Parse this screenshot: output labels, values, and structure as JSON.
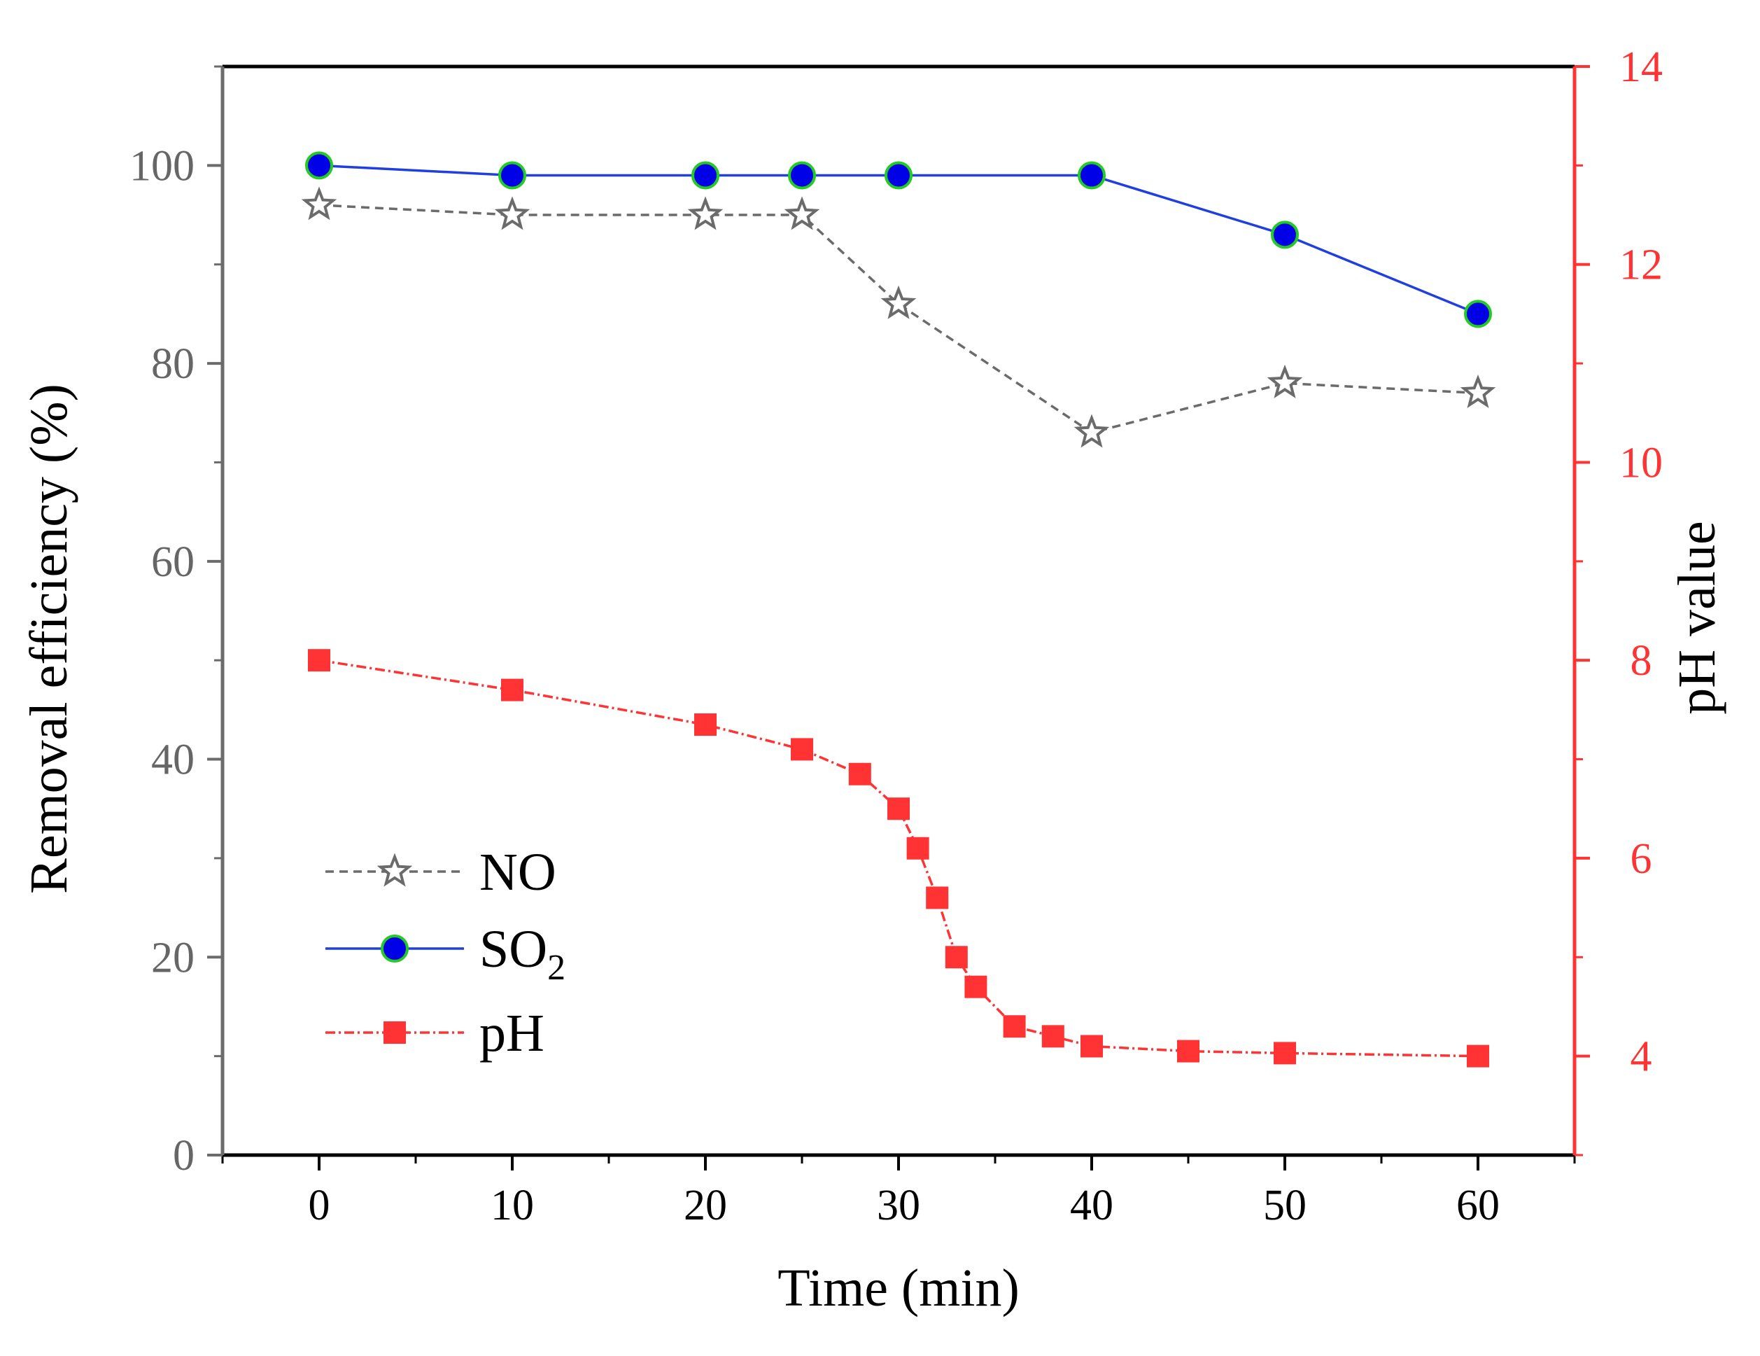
{
  "chart_data": {
    "type": "line",
    "title": "",
    "xlabel": "Time (min)",
    "ylabel_left": "Removal efficiency (%)",
    "ylabel_right": "pH value",
    "xlim": [
      -5,
      65
    ],
    "ylim_left": [
      0,
      110
    ],
    "ylim_right": [
      3,
      14
    ],
    "x_ticks": [
      "0",
      "10",
      "20",
      "30",
      "40",
      "50",
      "60"
    ],
    "y_left_ticks": [
      "0",
      "20",
      "40",
      "60",
      "80",
      "100"
    ],
    "y_right_ticks": [
      "4",
      "6",
      "8",
      "10",
      "12",
      "14"
    ],
    "grid": false,
    "legend_position": "bottom-left",
    "series": [
      {
        "name": "NO",
        "axis": "left",
        "marker": "star",
        "line_style": "dashed",
        "color": "#6b6b6b",
        "x": [
          0,
          10,
          20,
          25,
          30,
          40,
          50,
          60
        ],
        "y": [
          96,
          95,
          95,
          95,
          86,
          73,
          78,
          77
        ]
      },
      {
        "name": "SO",
        "name_subscript": "2",
        "axis": "left",
        "marker": "circle",
        "line_style": "solid",
        "color": "#1f3fe0",
        "marker_fill": "#0000e6",
        "marker_edge": "#22cc22",
        "x": [
          0,
          10,
          20,
          25,
          30,
          40,
          50,
          60
        ],
        "y": [
          100,
          99,
          99,
          99,
          99,
          99,
          93,
          85
        ]
      },
      {
        "name": "pH",
        "axis": "right",
        "marker": "square",
        "line_style": "dash-dot",
        "color": "#ff3333",
        "x": [
          0,
          10,
          20,
          25,
          28,
          30,
          31,
          32,
          33,
          34,
          36,
          38,
          40,
          45,
          50,
          60
        ],
        "y": [
          8.0,
          7.7,
          7.35,
          7.1,
          6.85,
          6.5,
          6.1,
          5.6,
          5.0,
          4.7,
          4.3,
          4.2,
          4.1,
          4.05,
          4.03,
          4.0
        ]
      }
    ]
  }
}
